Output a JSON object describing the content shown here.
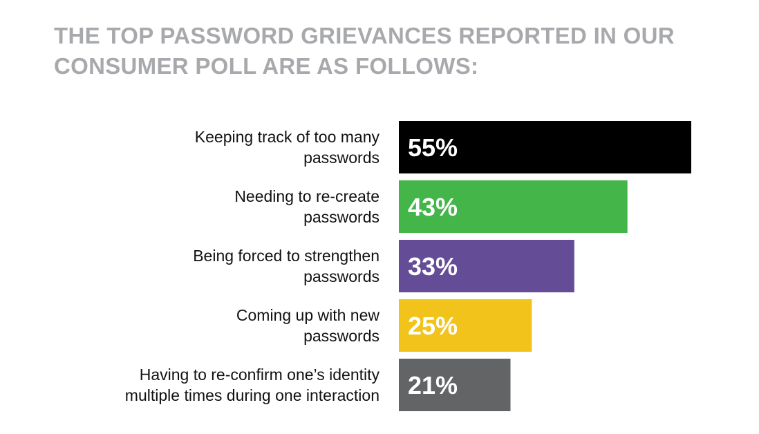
{
  "header": {
    "title_line1": "THE TOP PASSWORD GRIEVANCES REPORTED IN OUR",
    "title_line2": "CONSUMER POLL ARE AS FOLLOWS:"
  },
  "chart_data": {
    "type": "bar",
    "orientation": "horizontal",
    "title": "THE TOP PASSWORD GRIEVANCES REPORTED IN OUR CONSUMER POLL ARE AS FOLLOWS:",
    "categories": [
      [
        "Keeping track of too many",
        "passwords"
      ],
      [
        "Needing to re-create",
        "passwords"
      ],
      [
        "Being forced to strengthen",
        "passwords"
      ],
      [
        "Coming up with new",
        "passwords"
      ],
      [
        "Having to re-confirm one’s identity",
        "multiple times during one interaction"
      ]
    ],
    "values": [
      55,
      43,
      33,
      25,
      21
    ],
    "value_labels": [
      "55%",
      "43%",
      "33%",
      "25%",
      "21%"
    ],
    "colors": [
      "#000000",
      "#43b549",
      "#654c97",
      "#f1c31b",
      "#636466"
    ],
    "unit": "%",
    "xlim": [
      0,
      55
    ],
    "grid": false,
    "legend": "none"
  }
}
